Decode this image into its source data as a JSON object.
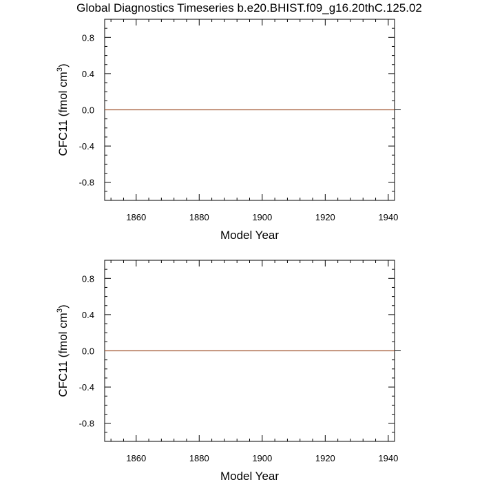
{
  "title": "Global Diagnostics Timeseries b.e20.BHIST.f09_g16.20thC.125.02",
  "colors": {
    "series": "#a0522d",
    "zero_line": "#000000",
    "axes": "#000000"
  },
  "chart_data": [
    {
      "type": "line",
      "xlabel": "Model Year",
      "ylabel": "CFC11 (fmol cm",
      "ylabel_sup": "3",
      "ylabel_end": ")",
      "xlim": [
        1850,
        1942
      ],
      "ylim": [
        -1.0,
        1.0
      ],
      "xticks": [
        1860,
        1880,
        1900,
        1920,
        1940
      ],
      "xtick_labels": [
        "1860",
        "1880",
        "1900",
        "1920",
        "1940"
      ],
      "yticks": [
        -0.8,
        -0.4,
        0.0,
        0.4,
        0.8
      ],
      "ytick_labels": [
        "-0.8",
        "-0.4",
        "0.0",
        "0.4",
        "0.8"
      ],
      "reference_line_y": 0.0,
      "series": [
        {
          "x": [
            1850,
            1942
          ],
          "y": [
            0.0,
            0.0
          ]
        }
      ]
    },
    {
      "type": "line",
      "xlabel": "Model Year",
      "ylabel": "CFC11 (fmol cm",
      "ylabel_sup": "3",
      "ylabel_end": ")",
      "xlim": [
        1850,
        1942
      ],
      "ylim": [
        -1.0,
        1.0
      ],
      "xticks": [
        1860,
        1880,
        1900,
        1920,
        1940
      ],
      "xtick_labels": [
        "1860",
        "1880",
        "1900",
        "1920",
        "1940"
      ],
      "yticks": [
        -0.8,
        -0.4,
        0.0,
        0.4,
        0.8
      ],
      "ytick_labels": [
        "-0.8",
        "-0.4",
        "0.0",
        "0.4",
        "0.8"
      ],
      "reference_line_y": 0.0,
      "series": [
        {
          "x": [
            1850,
            1942
          ],
          "y": [
            0.0,
            0.0
          ]
        }
      ]
    }
  ]
}
